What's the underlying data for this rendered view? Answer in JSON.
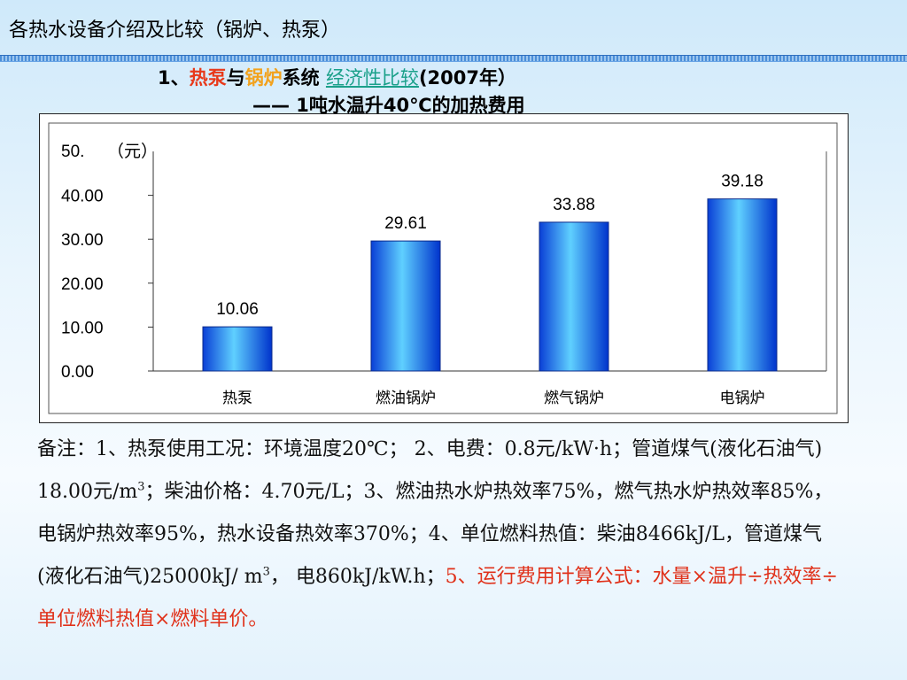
{
  "slide": {
    "title": "各热水设备介绍及比较（锅炉、热泵）",
    "subtitle_num": "1、",
    "subtitle_heatpump": "热泵",
    "subtitle_and": "与",
    "subtitle_boiler": "锅炉",
    "subtitle_system": "系统 ",
    "subtitle_econ": "经济性比较",
    "subtitle_year": "(2007年）",
    "subtitle2": "—— 1吨水温升40℃的加热费用"
  },
  "notes": {
    "part1": "备注：1、热泵使用工况：环境温度20℃； 2、电费：0.8元/kW·h；管道煤气(液化石油气) 18.00元/m",
    "part1_sup": "3",
    "part2": "；柴油价格：4.70元/L；3、燃油热水炉热效率75%，燃气热水炉热效率85%，电锅炉热效率95%，热水设备热效率370%；4、单位燃料热值：柴油8466kJ/L，管道煤气(液化石油气)25000kJ/ m",
    "part2_sup": "3",
    "part3": "，  电860kJ/kW.h；",
    "highlight": "5、运行费用计算公式：水量×温升÷热效率÷单位燃料热值×燃料单价。"
  },
  "colors": {
    "bar_light": "#5fd0ff",
    "bar_dark": "#0033cc",
    "title_rule": "#4c8fd8"
  },
  "chart_data": {
    "type": "bar",
    "categories": [
      "热泵",
      "燃油锅炉",
      "燃气锅炉",
      "电锅炉"
    ],
    "values": [
      10.06,
      29.61,
      33.88,
      39.18
    ],
    "value_labels": [
      "10.06",
      "29.61",
      "33.88",
      "39.18"
    ],
    "yticks": [
      "0.00",
      "10.00",
      "20.00",
      "30.00",
      "40.00"
    ],
    "ytick_values": [
      0,
      10,
      20,
      30,
      40
    ],
    "ytop_label": "50.",
    "yunit": "（元）",
    "ylim": [
      0,
      50
    ],
    "grid": false
  }
}
